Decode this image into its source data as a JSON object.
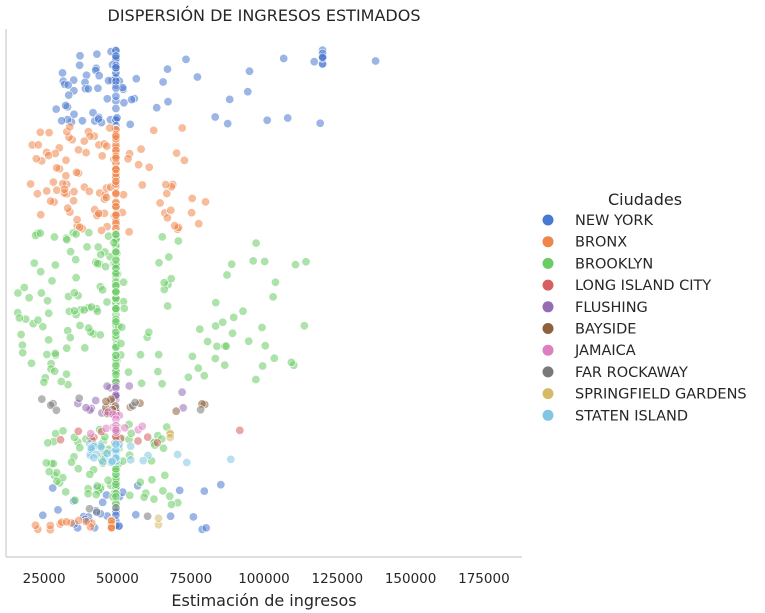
{
  "chart_data": {
    "type": "scatter",
    "title": "DISPERSIÓN DE INGRESOS ESTIMADOS",
    "xlabel": "Estimación de ingresos",
    "ylabel": "",
    "xlim": [
      12000,
      188000
    ],
    "x_ticks": [
      25000,
      50000,
      75000,
      100000,
      125000,
      150000,
      175000
    ],
    "x_tick_labels": [
      "25000",
      "50000",
      "75000",
      "100000",
      "125000",
      "150000",
      "175000"
    ],
    "y_axis": "categorical index (no tick labels shown)",
    "grid": false,
    "legend": {
      "title": "Ciudades",
      "placement": "right"
    },
    "series": [
      {
        "name": "NEW YORK",
        "color": "#4878d0",
        "bands": [
          [
            0.0,
            0.16,
            28000,
            120000,
            90
          ],
          [
            0.0,
            0.03,
            120000,
            182000,
            10
          ],
          [
            0.9,
            1.0,
            24000,
            88000,
            42
          ]
        ]
      },
      {
        "name": "BRONX",
        "color": "#ee854a",
        "bands": [
          [
            0.16,
            0.38,
            20000,
            82000,
            150
          ],
          [
            0.98,
            1.0,
            22000,
            48000,
            30
          ]
        ]
      },
      {
        "name": "BROOKLYN",
        "color": "#6acc64",
        "bands": [
          [
            0.38,
            0.7,
            16000,
            115000,
            210
          ],
          [
            0.78,
            0.95,
            24000,
            72000,
            110
          ]
        ]
      },
      {
        "name": "LONG ISLAND CITY",
        "color": "#d65f5f",
        "bands": [
          [
            0.79,
            0.82,
            28000,
            100000,
            14
          ]
        ]
      },
      {
        "name": "FLUSHING",
        "color": "#956cb4",
        "bands": [
          [
            0.7,
            0.76,
            36000,
            92000,
            22
          ]
        ]
      },
      {
        "name": "BAYSIDE",
        "color": "#8c613c",
        "bands": [
          [
            0.72,
            0.76,
            46000,
            85000,
            14
          ]
        ]
      },
      {
        "name": "JAMAICA",
        "color": "#dc7ec0",
        "bands": [
          [
            0.75,
            0.8,
            38000,
            74000,
            16
          ]
        ]
      },
      {
        "name": "FAR ROCKAWAY",
        "color": "#797979",
        "bands": [
          [
            0.72,
            0.76,
            24000,
            84000,
            8
          ],
          [
            0.95,
            0.98,
            40000,
            66000,
            4
          ]
        ]
      },
      {
        "name": "SPRINGFIELD GARDENS",
        "color": "#d5bb67",
        "bands": [
          [
            0.79,
            0.82,
            68000,
            80000,
            4
          ],
          [
            0.97,
            0.99,
            64000,
            68000,
            2
          ]
        ]
      },
      {
        "name": "STATEN ISLAND",
        "color": "#82c6e2",
        "bands": [
          [
            0.82,
            0.86,
            40000,
            98000,
            45
          ]
        ]
      }
    ],
    "band_format": [
      "y_start_index_fraction",
      "y_end_index_fraction",
      "x_min",
      "x_max",
      "count"
    ],
    "dominant_value": 49500
  }
}
